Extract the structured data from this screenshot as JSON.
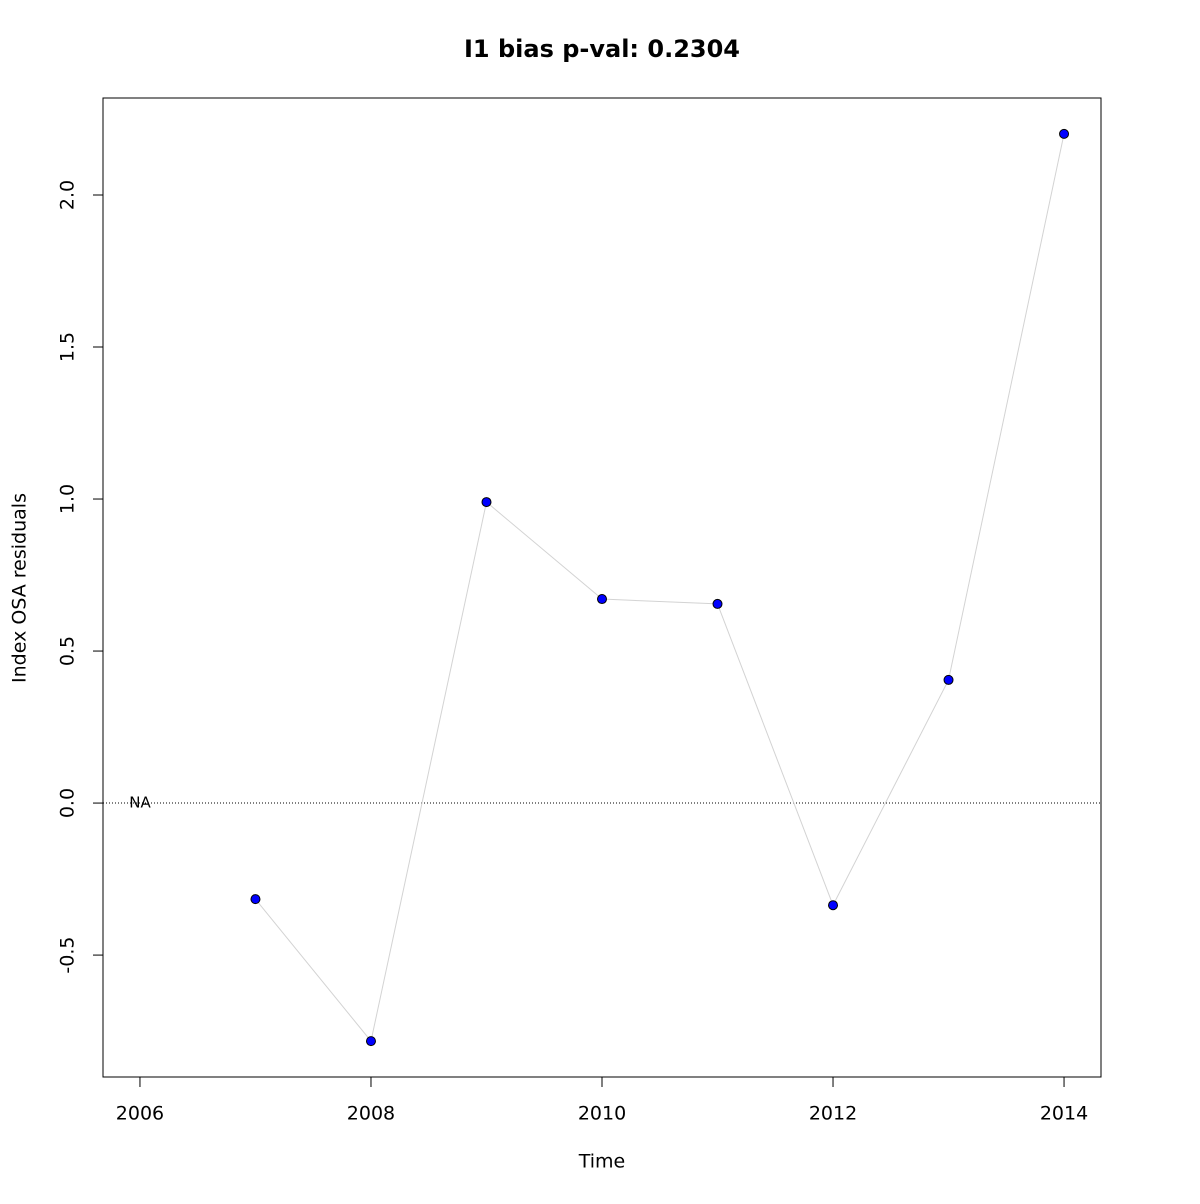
{
  "chart_data": {
    "type": "line",
    "title": "I1 bias p-val: 0.2304",
    "title_color": "#228b22",
    "x_label": "Time",
    "y_label": "Index OSA residuals",
    "x": [
      2006,
      2007,
      2008,
      2009,
      2010,
      2011,
      2012,
      2013,
      2014
    ],
    "series": [
      {
        "name": "I1",
        "color": "#0000ff",
        "line_color": "#d3d3d3",
        "values": [
          null,
          -0.316,
          -0.783,
          0.99,
          0.671,
          0.655,
          -0.336,
          0.405,
          2.201
        ]
      }
    ],
    "annotations": [
      {
        "text": "NA",
        "x": 2006,
        "y": 0
      }
    ],
    "hline": 0,
    "xlim": [
      2005.68,
      2014.32
    ],
    "ylim": [
      -0.901,
      2.319
    ],
    "xticks": [
      2006,
      2008,
      2010,
      2012,
      2014
    ],
    "yticks": [
      -0.5,
      {
        "value": 0,
        "label": "0.0"
      },
      0.5,
      {
        "value": 1,
        "label": "1.0"
      },
      1.5,
      {
        "value": 2,
        "label": "2.0"
      }
    ]
  }
}
